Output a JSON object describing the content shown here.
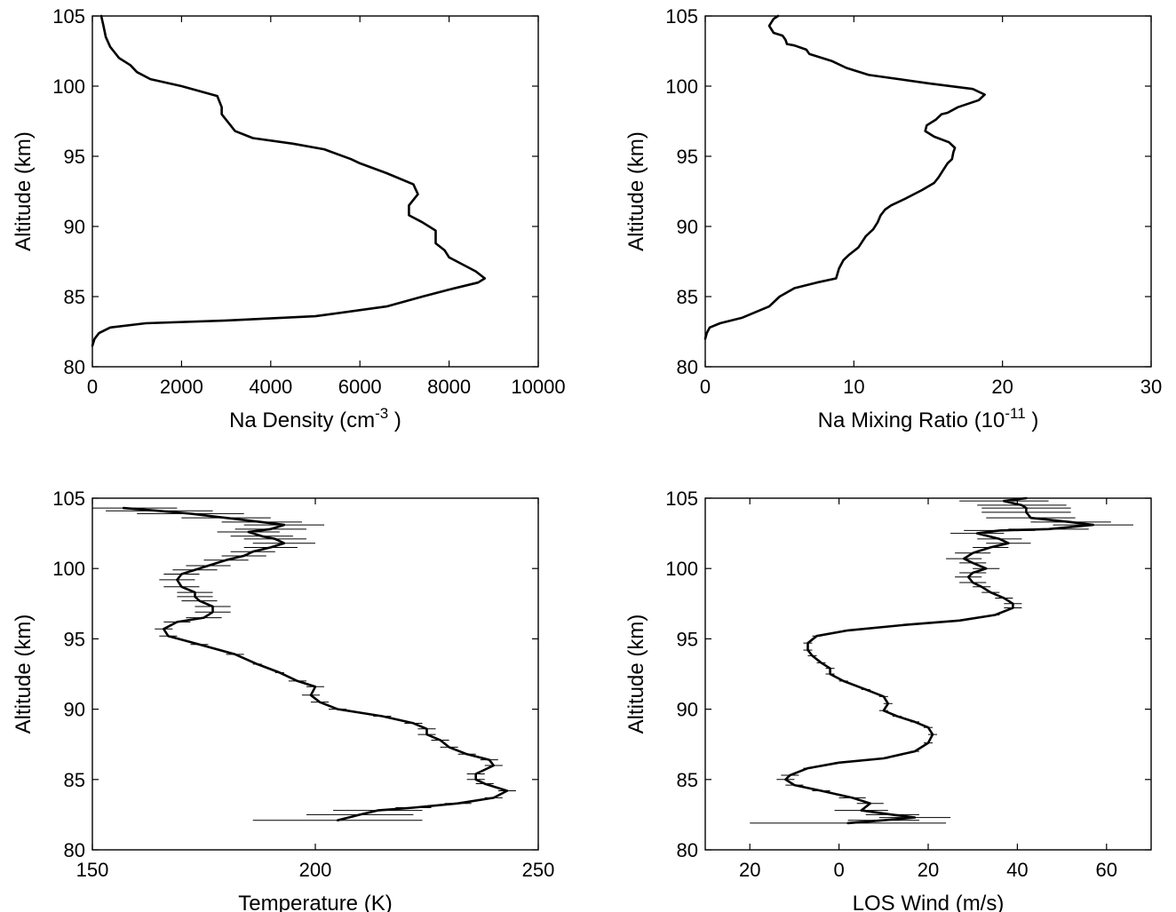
{
  "chart_data": [
    {
      "type": "line",
      "xlabel": "Na Density (cm",
      "xlabel_sup": "-3",
      "xlabel_end": " )",
      "ylabel": "Altitude (km)",
      "xlim": [
        0,
        10000
      ],
      "ylim": [
        80,
        105
      ],
      "xticks": [
        0,
        2000,
        4000,
        6000,
        8000,
        10000
      ],
      "yticks": [
        80,
        85,
        90,
        95,
        100,
        105
      ],
      "x": [
        0,
        50,
        150,
        400,
        1200,
        3000,
        5000,
        6600,
        7400,
        8000,
        8650,
        8800,
        8600,
        8000,
        7900,
        7700,
        7700,
        7400,
        7100,
        7100,
        7300,
        7200,
        6600,
        6000,
        5800,
        5200,
        4500,
        3600,
        3200,
        3100,
        3000,
        2900,
        2900,
        2800,
        2000,
        1300,
        1000,
        850,
        600,
        400,
        300,
        250,
        200
      ],
      "y": [
        81.5,
        82.0,
        82.4,
        82.8,
        83.1,
        83.3,
        83.6,
        84.3,
        85.0,
        85.5,
        86.0,
        86.3,
        86.8,
        87.8,
        88.3,
        88.8,
        89.7,
        90.3,
        90.8,
        91.5,
        92.3,
        93.0,
        93.8,
        94.5,
        94.8,
        95.5,
        95.9,
        96.3,
        96.8,
        97.2,
        97.6,
        98.0,
        98.5,
        99.3,
        100.0,
        100.5,
        101.0,
        101.5,
        102.0,
        102.8,
        103.5,
        104.3,
        105.0
      ]
    },
    {
      "type": "line",
      "xlabel": "Na Mixing Ratio (10",
      "xlabel_sup": "-11",
      "xlabel_end": " )",
      "ylabel": "Altitude (km)",
      "xlim": [
        0,
        30
      ],
      "ylim": [
        80,
        105
      ],
      "xticks": [
        0,
        10,
        20,
        30
      ],
      "yticks": [
        80,
        85,
        90,
        95,
        100,
        105
      ],
      "x": [
        0.0,
        0.1,
        0.3,
        1.0,
        2.5,
        4.3,
        5.0,
        6.0,
        7.5,
        8.8,
        9.0,
        9.3,
        9.7,
        10.3,
        10.8,
        11.3,
        11.6,
        11.8,
        12.1,
        12.5,
        13.5,
        14.6,
        15.4,
        15.7,
        16.0,
        16.3,
        16.6,
        16.7,
        16.8,
        16.4,
        15.4,
        14.8,
        14.9,
        15.5,
        15.9,
        16.3,
        17.0,
        18.4,
        18.8,
        18.0,
        15.0,
        11.0,
        9.5,
        8.5,
        7.0,
        6.8,
        6.0,
        5.5,
        5.4,
        5.2,
        4.6,
        4.3,
        4.6,
        4.9
      ],
      "y": [
        82.0,
        82.4,
        82.8,
        83.1,
        83.5,
        84.3,
        85.0,
        85.6,
        86.0,
        86.3,
        87.0,
        87.6,
        88.0,
        88.5,
        89.3,
        89.8,
        90.3,
        90.8,
        91.2,
        91.5,
        92.0,
        92.6,
        93.1,
        93.5,
        94.0,
        94.5,
        94.8,
        95.3,
        95.6,
        96.0,
        96.4,
        96.8,
        97.2,
        97.6,
        98.0,
        98.1,
        98.5,
        99.0,
        99.4,
        99.8,
        100.2,
        100.8,
        101.3,
        101.8,
        102.3,
        102.6,
        102.9,
        103.0,
        103.3,
        103.6,
        103.8,
        104.3,
        104.8,
        105.0
      ],
      "y_offset": [
        0,
        0,
        0,
        0,
        0,
        0,
        0,
        0,
        0,
        0,
        0,
        0,
        0,
        0,
        0,
        0,
        0,
        0,
        0,
        0,
        0,
        0,
        0,
        0,
        0,
        0,
        0,
        0,
        0,
        0,
        0,
        0,
        0,
        0,
        0,
        0,
        0,
        0,
        0,
        0,
        0,
        0,
        0,
        0,
        0,
        0,
        0,
        0,
        0,
        0,
        0,
        0,
        0,
        0
      ]
    },
    {
      "type": "line",
      "xlabel": "Temperature (K)",
      "ylabel": "Altitude (km)",
      "xlim": [
        150,
        250
      ],
      "ylim": [
        80,
        105
      ],
      "xticks": [
        150,
        200,
        250
      ],
      "yticks": [
        80,
        85,
        90,
        95,
        100,
        105
      ],
      "x": [
        205,
        210,
        214,
        222,
        232,
        240,
        243,
        238,
        236,
        236,
        240,
        239,
        234,
        230,
        228,
        225,
        225,
        222,
        215,
        205,
        201,
        199,
        200,
        196,
        192,
        187,
        182,
        174,
        167,
        166,
        169,
        175,
        177,
        177,
        174,
        173,
        173,
        170,
        169,
        170,
        173,
        176,
        180,
        184,
        186,
        190,
        193,
        191,
        188,
        185,
        190,
        193,
        188,
        180,
        172,
        165,
        157
      ],
      "y": [
        82.1,
        82.5,
        82.8,
        83.0,
        83.3,
        83.7,
        84.2,
        84.7,
        85.0,
        85.4,
        86.0,
        86.4,
        86.8,
        87.3,
        87.8,
        88.2,
        88.6,
        89.0,
        89.5,
        90.0,
        90.5,
        91.0,
        91.6,
        92.0,
        92.6,
        93.2,
        93.9,
        94.6,
        95.2,
        95.7,
        96.2,
        96.5,
        96.9,
        97.3,
        97.7,
        98.0,
        98.3,
        98.7,
        99.2,
        99.6,
        99.9,
        100.2,
        100.6,
        100.9,
        101.2,
        101.5,
        101.8,
        102.1,
        102.3,
        102.6,
        102.8,
        103.1,
        103.3,
        103.6,
        103.9,
        104.1,
        104.3
      ],
      "err": [
        19,
        12,
        10,
        4,
        3,
        2,
        2,
        2,
        2,
        2,
        2,
        2,
        2,
        2,
        2,
        2,
        2,
        2,
        2,
        2,
        2,
        2,
        2,
        2,
        1,
        1,
        2,
        2,
        2,
        2,
        3,
        4,
        4,
        4,
        4,
        4,
        4,
        4,
        4,
        4,
        5,
        5,
        5,
        5,
        5,
        6,
        7,
        7,
        7,
        7,
        8,
        9,
        9,
        10,
        12,
        12,
        12
      ]
    },
    {
      "type": "line",
      "xlabel": "LOS Wind (m/s)",
      "ylabel": "Altitude (km)",
      "xlim": [
        -30,
        70
      ],
      "ylim": [
        80,
        105
      ],
      "xticks": [
        -20,
        0,
        20,
        40,
        60
      ],
      "xticklabels": [
        "20",
        "0",
        "20",
        "40",
        "60"
      ],
      "yticks": [
        80,
        85,
        90,
        95,
        100,
        105
      ],
      "x": [
        2,
        10,
        17,
        12,
        5,
        7,
        3,
        -4,
        -10,
        -12,
        -11,
        -7,
        0,
        10,
        17,
        20,
        21,
        20,
        17,
        13,
        10,
        11,
        10,
        6,
        1,
        -2,
        -2,
        -4,
        -6,
        -7,
        -7,
        -5,
        2,
        15,
        27,
        35,
        39,
        39,
        37,
        34,
        32,
        30,
        29,
        30,
        33,
        30,
        28,
        30,
        34,
        38,
        36,
        31,
        36,
        47,
        57,
        52,
        43,
        42,
        42,
        41,
        37,
        42
      ],
      "y": [
        81.9,
        82.1,
        82.3,
        82.5,
        82.8,
        83.3,
        83.7,
        84.2,
        84.6,
        85.0,
        85.3,
        85.8,
        86.2,
        86.5,
        87.0,
        87.6,
        88.2,
        88.7,
        89.1,
        89.5,
        89.9,
        90.4,
        90.9,
        91.4,
        92.0,
        92.5,
        92.9,
        93.3,
        93.8,
        94.2,
        94.7,
        95.2,
        95.6,
        96.0,
        96.3,
        96.7,
        97.2,
        97.5,
        97.9,
        98.3,
        98.7,
        99.0,
        99.4,
        99.7,
        100.0,
        100.4,
        100.7,
        101.1,
        101.5,
        101.8,
        102.1,
        102.5,
        102.7,
        102.8,
        103.1,
        103.3,
        103.6,
        104.0,
        104.3,
        104.5,
        104.8,
        105.0
      ],
      "err": [
        22,
        8,
        8,
        6,
        6,
        3,
        3,
        2,
        2,
        2,
        2,
        1,
        1,
        1,
        1,
        1,
        1,
        1,
        1,
        1,
        1,
        1,
        1,
        1,
        1,
        1,
        1,
        1,
        1,
        1,
        1,
        1,
        1,
        1,
        1,
        1,
        2,
        2,
        2,
        2,
        2,
        3,
        3,
        3,
        3,
        3,
        4,
        4,
        4,
        5,
        5,
        6,
        8,
        9,
        9,
        9,
        10,
        10,
        10,
        10,
        10,
        12
      ]
    }
  ]
}
